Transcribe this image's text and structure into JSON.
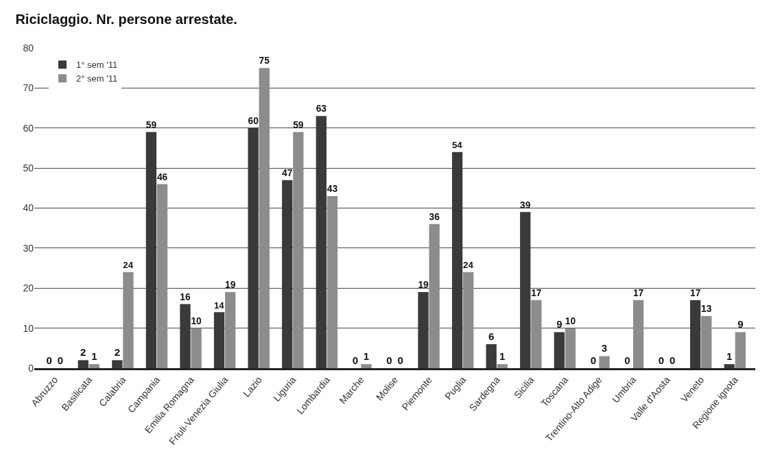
{
  "chart_data": {
    "type": "bar",
    "title": "Riciclaggio. Nr. persone arrestate.",
    "categories": [
      "Abruzzo",
      "Basilicata",
      "Calabria",
      "Campania",
      "Emilia Romagna",
      "Friuli-Venezia Giulia",
      "Lazio",
      "Liguria",
      "Lombardia",
      "Marche",
      "Molise",
      "Piemonte",
      "Puglia",
      "Sardegna",
      "Sicilia",
      "Toscana",
      "Trentino-Alto Adige",
      "Umbria",
      "Valle d'Aosta",
      "Veneto",
      "Regione ignota"
    ],
    "series": [
      {
        "name": "1° sem '11",
        "color": "#3a3a3a",
        "values": [
          0,
          2,
          2,
          59,
          16,
          14,
          60,
          47,
          63,
          0,
          0,
          19,
          54,
          6,
          39,
          9,
          0,
          0,
          0,
          17,
          1
        ]
      },
      {
        "name": "2° sem '11",
        "color": "#8c8c8c",
        "values": [
          0,
          1,
          24,
          46,
          10,
          19,
          75,
          59,
          43,
          1,
          0,
          36,
          24,
          1,
          17,
          10,
          3,
          17,
          0,
          13,
          9
        ]
      }
    ],
    "ylim": [
      0,
      80
    ],
    "yticks": [
      0,
      10,
      20,
      30,
      40,
      50,
      60,
      70,
      80
    ],
    "grid": "y",
    "legend": "top left",
    "data_labels": true
  }
}
